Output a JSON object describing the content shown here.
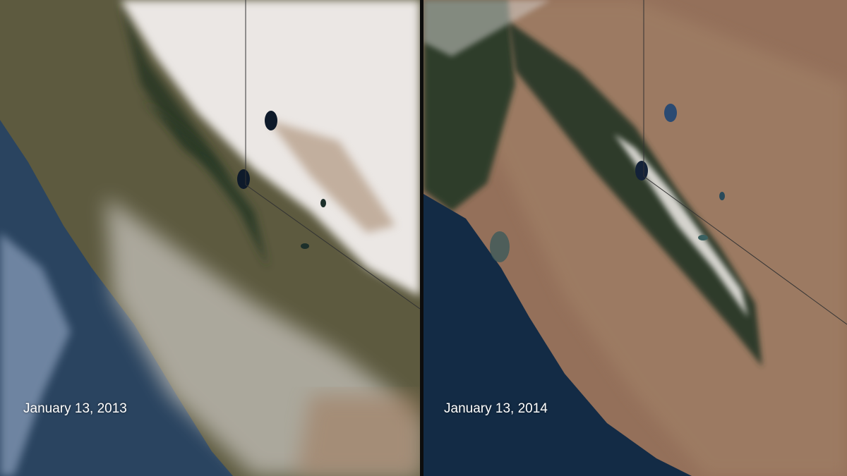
{
  "panels": [
    {
      "date_label": "January 13, 2013"
    },
    {
      "date_label": "January 13, 2014"
    }
  ],
  "colors": {
    "ocean": "#1d3550",
    "land_dry": "#9a7458",
    "forest": "#2f3b2a",
    "snow": "#eeeae6"
  }
}
